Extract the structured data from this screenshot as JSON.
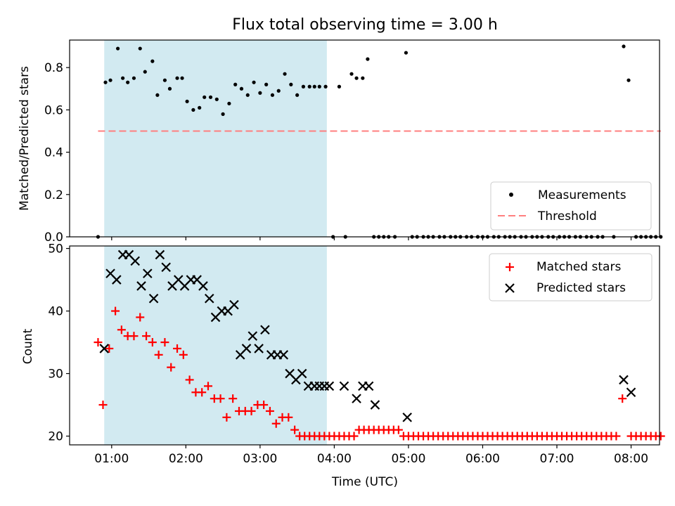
{
  "chart_data": [
    {
      "type": "scatter",
      "title": "Flux total observing time = 3.00 h",
      "xlabel": "",
      "ylabel": "Matched/Predicted stars",
      "ylim": [
        0,
        0.93
      ],
      "yticks": [
        0.0,
        0.2,
        0.4,
        0.6,
        0.8
      ],
      "ytick_labels": [
        "0.0",
        "0.2",
        "0.4",
        "0.6",
        "0.8"
      ],
      "shaded_interval": {
        "start": 54,
        "end": 234,
        "color": "#add8e6"
      },
      "legend": {
        "placement": "lower-right",
        "entries": [
          "Measurements",
          "Threshold"
        ]
      },
      "series": [
        {
          "name": "Measurements",
          "marker": "dot",
          "color": "#000000",
          "points": [
            [
              49,
              0.0
            ],
            [
              55,
              0.73
            ],
            [
              59,
              0.74
            ],
            [
              65,
              0.89
            ],
            [
              69,
              0.75
            ],
            [
              73,
              0.73
            ],
            [
              78,
              0.75
            ],
            [
              83,
              0.89
            ],
            [
              87,
              0.78
            ],
            [
              93,
              0.83
            ],
            [
              97,
              0.67
            ],
            [
              103,
              0.74
            ],
            [
              107,
              0.7
            ],
            [
              113,
              0.75
            ],
            [
              117,
              0.75
            ],
            [
              121,
              0.64
            ],
            [
              126,
              0.6
            ],
            [
              131,
              0.61
            ],
            [
              135,
              0.66
            ],
            [
              140,
              0.66
            ],
            [
              145,
              0.65
            ],
            [
              150,
              0.58
            ],
            [
              155,
              0.63
            ],
            [
              160,
              0.72
            ],
            [
              165,
              0.7
            ],
            [
              170,
              0.67
            ],
            [
              175,
              0.73
            ],
            [
              180,
              0.68
            ],
            [
              185,
              0.72
            ],
            [
              190,
              0.67
            ],
            [
              195,
              0.69
            ],
            [
              200,
              0.77
            ],
            [
              205,
              0.72
            ],
            [
              210,
              0.67
            ],
            [
              215,
              0.71
            ],
            [
              220,
              0.71
            ],
            [
              224,
              0.71
            ],
            [
              228,
              0.71
            ],
            [
              233,
              0.71
            ],
            [
              239,
              0.0
            ],
            [
              244,
              0.71
            ],
            [
              249,
              0.0
            ],
            [
              254,
              0.77
            ],
            [
              258,
              0.75
            ],
            [
              263,
              0.75
            ],
            [
              267,
              0.84
            ],
            [
              272,
              0.0
            ],
            [
              276,
              0.0
            ],
            [
              280,
              0.0
            ],
            [
              284,
              0.0
            ],
            [
              289,
              0.0
            ],
            [
              298,
              0.87
            ],
            [
              303,
              0.0
            ],
            [
              307,
              0.0
            ],
            [
              312,
              0.0
            ],
            [
              316,
              0.0
            ],
            [
              320,
              0.0
            ],
            [
              325,
              0.0
            ],
            [
              329,
              0.0
            ],
            [
              334,
              0.0
            ],
            [
              338,
              0.0
            ],
            [
              342,
              0.0
            ],
            [
              347,
              0.0
            ],
            [
              351,
              0.0
            ],
            [
              356,
              0.0
            ],
            [
              360,
              0.0
            ],
            [
              364,
              0.0
            ],
            [
              369,
              0.0
            ],
            [
              373,
              0.0
            ],
            [
              378,
              0.0
            ],
            [
              382,
              0.0
            ],
            [
              386,
              0.0
            ],
            [
              391,
              0.0
            ],
            [
              395,
              0.0
            ],
            [
              400,
              0.0
            ],
            [
              404,
              0.0
            ],
            [
              408,
              0.0
            ],
            [
              413,
              0.0
            ],
            [
              417,
              0.0
            ],
            [
              422,
              0.0
            ],
            [
              426,
              0.0
            ],
            [
              430,
              0.0
            ],
            [
              435,
              0.0
            ],
            [
              439,
              0.0
            ],
            [
              444,
              0.0
            ],
            [
              448,
              0.0
            ],
            [
              453,
              0.0
            ],
            [
              457,
              0.0
            ],
            [
              466,
              0.0
            ],
            [
              474,
              0.9
            ],
            [
              478,
              0.74
            ],
            [
              484,
              0.0
            ],
            [
              488,
              0.0
            ],
            [
              492,
              0.0
            ],
            [
              496,
              0.0
            ],
            [
              500,
              0.0
            ],
            [
              504,
              0.0
            ]
          ]
        },
        {
          "name": "Threshold",
          "style": "dashed",
          "color": "#ff7f7f",
          "points": [
            [
              49,
              0.5
            ],
            [
              504,
              0.5
            ]
          ]
        }
      ]
    },
    {
      "type": "scatter",
      "title": "",
      "xlabel": "Time (UTC)",
      "ylabel": "Count",
      "ylim": [
        18.6,
        50.4
      ],
      "yticks": [
        20,
        30,
        40,
        50
      ],
      "ytick_labels": [
        "20",
        "30",
        "40",
        "50"
      ],
      "xlim": [
        26,
        503
      ],
      "xticks": [
        60,
        120,
        180,
        240,
        300,
        360,
        420,
        480
      ],
      "xtick_labels": [
        "01:00",
        "02:00",
        "03:00",
        "04:00",
        "05:00",
        "06:00",
        "07:00",
        "08:00"
      ],
      "shaded_interval": {
        "start": 54,
        "end": 234,
        "color": "#add8e6"
      },
      "legend": {
        "placement": "top-right",
        "entries": [
          "Matched stars",
          "Predicted stars"
        ]
      },
      "series": [
        {
          "name": "Matched stars",
          "marker": "plus",
          "color": "#ff0000",
          "points": [
            [
              49,
              35
            ],
            [
              53,
              25
            ],
            [
              58,
              34
            ],
            [
              63,
              40
            ],
            [
              68,
              37
            ],
            [
              73,
              36
            ],
            [
              78,
              36
            ],
            [
              83,
              39
            ],
            [
              88,
              36
            ],
            [
              93,
              35
            ],
            [
              98,
              33
            ],
            [
              103,
              35
            ],
            [
              108,
              31
            ],
            [
              113,
              34
            ],
            [
              118,
              33
            ],
            [
              123,
              29
            ],
            [
              128,
              27
            ],
            [
              133,
              27
            ],
            [
              138,
              28
            ],
            [
              143,
              26
            ],
            [
              148,
              26
            ],
            [
              153,
              23
            ],
            [
              158,
              26
            ],
            [
              163,
              24
            ],
            [
              168,
              24
            ],
            [
              173,
              24
            ],
            [
              178,
              25
            ],
            [
              183,
              25
            ],
            [
              188,
              24
            ],
            [
              193,
              22
            ],
            [
              198,
              23
            ],
            [
              203,
              23
            ],
            [
              208,
              21
            ],
            [
              212,
              20
            ],
            [
              216,
              20
            ],
            [
              220,
              20
            ],
            [
              224,
              20
            ],
            [
              228,
              20
            ],
            [
              232,
              20
            ],
            [
              236,
              20
            ],
            [
              240,
              20
            ],
            [
              244,
              20
            ],
            [
              248,
              20
            ],
            [
              252,
              20
            ],
            [
              256,
              20
            ],
            [
              260,
              21
            ],
            [
              264,
              21
            ],
            [
              268,
              21
            ],
            [
              272,
              21
            ],
            [
              276,
              21
            ],
            [
              280,
              21
            ],
            [
              284,
              21
            ],
            [
              288,
              21
            ],
            [
              292,
              21
            ],
            [
              296,
              20
            ],
            [
              300,
              20
            ],
            [
              304,
              20
            ],
            [
              308,
              20
            ],
            [
              312,
              20
            ],
            [
              316,
              20
            ],
            [
              320,
              20
            ],
            [
              324,
              20
            ],
            [
              328,
              20
            ],
            [
              332,
              20
            ],
            [
              336,
              20
            ],
            [
              340,
              20
            ],
            [
              344,
              20
            ],
            [
              348,
              20
            ],
            [
              352,
              20
            ],
            [
              356,
              20
            ],
            [
              360,
              20
            ],
            [
              364,
              20
            ],
            [
              368,
              20
            ],
            [
              372,
              20
            ],
            [
              376,
              20
            ],
            [
              380,
              20
            ],
            [
              384,
              20
            ],
            [
              388,
              20
            ],
            [
              392,
              20
            ],
            [
              396,
              20
            ],
            [
              400,
              20
            ],
            [
              404,
              20
            ],
            [
              408,
              20
            ],
            [
              412,
              20
            ],
            [
              416,
              20
            ],
            [
              420,
              20
            ],
            [
              424,
              20
            ],
            [
              428,
              20
            ],
            [
              432,
              20
            ],
            [
              436,
              20
            ],
            [
              440,
              20
            ],
            [
              444,
              20
            ],
            [
              448,
              20
            ],
            [
              452,
              20
            ],
            [
              456,
              20
            ],
            [
              460,
              20
            ],
            [
              464,
              20
            ],
            [
              468,
              20
            ],
            [
              473,
              26
            ],
            [
              480,
              20
            ],
            [
              484,
              20
            ],
            [
              488,
              20
            ],
            [
              492,
              20
            ],
            [
              496,
              20
            ],
            [
              500,
              20
            ],
            [
              504,
              20
            ]
          ]
        },
        {
          "name": "Predicted stars",
          "marker": "x",
          "color": "#000000",
          "points": [
            [
              54,
              34
            ],
            [
              59,
              46
            ],
            [
              64,
              45
            ],
            [
              69,
              49
            ],
            [
              74,
              49
            ],
            [
              79,
              48
            ],
            [
              84,
              44
            ],
            [
              89,
              46
            ],
            [
              94,
              42
            ],
            [
              99,
              49
            ],
            [
              104,
              47
            ],
            [
              109,
              44
            ],
            [
              114,
              45
            ],
            [
              119,
              44
            ],
            [
              124,
              45
            ],
            [
              129,
              45
            ],
            [
              134,
              44
            ],
            [
              139,
              42
            ],
            [
              144,
              39
            ],
            [
              149,
              40
            ],
            [
              154,
              40
            ],
            [
              159,
              41
            ],
            [
              164,
              33
            ],
            [
              169,
              34
            ],
            [
              174,
              36
            ],
            [
              179,
              34
            ],
            [
              184,
              37
            ],
            [
              189,
              33
            ],
            [
              194,
              33
            ],
            [
              199,
              33
            ],
            [
              204,
              30
            ],
            [
              209,
              29
            ],
            [
              214,
              30
            ],
            [
              219,
              28
            ],
            [
              224,
              28
            ],
            [
              228,
              28
            ],
            [
              232,
              28
            ],
            [
              236,
              28
            ],
            [
              248,
              28
            ],
            [
              258,
              26
            ],
            [
              263,
              28
            ],
            [
              268,
              28
            ],
            [
              273,
              25
            ],
            [
              299,
              23
            ],
            [
              474,
              29
            ],
            [
              480,
              27
            ]
          ]
        }
      ]
    }
  ]
}
